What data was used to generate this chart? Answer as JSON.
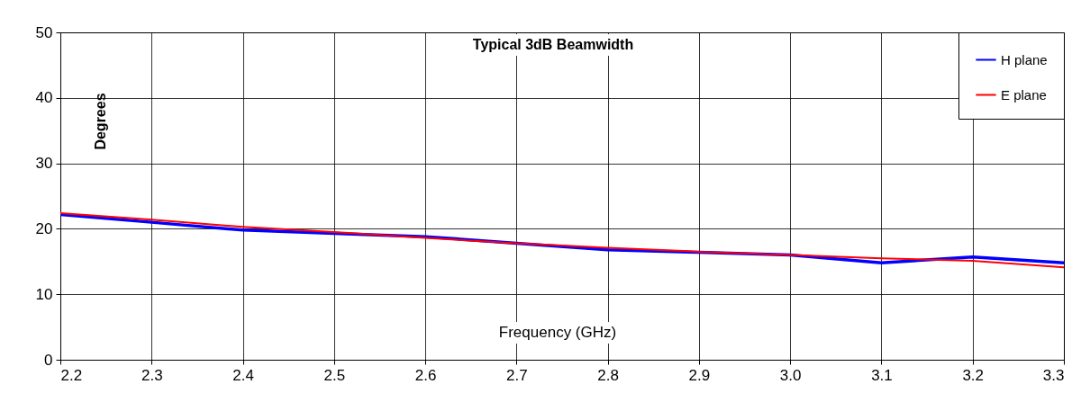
{
  "chart_data": {
    "type": "line",
    "title": "Typical 3dB Beamwidth",
    "xlabel": "Frequency (GHz)",
    "ylabel": "Degrees",
    "x": [
      2.2,
      2.3,
      2.4,
      2.5,
      2.6,
      2.7,
      2.8,
      2.9,
      3.0,
      3.1,
      3.2,
      3.3
    ],
    "series": [
      {
        "name": "H plane",
        "color": "#0000ff",
        "values": [
          22.2,
          21.0,
          19.8,
          19.3,
          18.8,
          17.8,
          16.8,
          16.4,
          16.0,
          14.8,
          15.7,
          14.8
        ]
      },
      {
        "name": "E plane",
        "color": "#ff0000",
        "values": [
          22.4,
          21.4,
          20.3,
          19.5,
          18.6,
          17.8,
          17.1,
          16.5,
          16.0,
          15.5,
          15.1,
          14.1
        ]
      }
    ],
    "xlim": [
      2.2,
      3.3
    ],
    "xticks": [
      2.2,
      2.3,
      2.4,
      2.5,
      2.6,
      2.7,
      2.8,
      2.9,
      {
        "value": 3.0,
        "label": "3.0"
      },
      3.1,
      3.2,
      3.3
    ],
    "ylim": [
      0,
      50
    ],
    "yticks": [
      0,
      10,
      20,
      30,
      40,
      50
    ],
    "grid": true,
    "legend": "top right",
    "line_style": "solid"
  }
}
